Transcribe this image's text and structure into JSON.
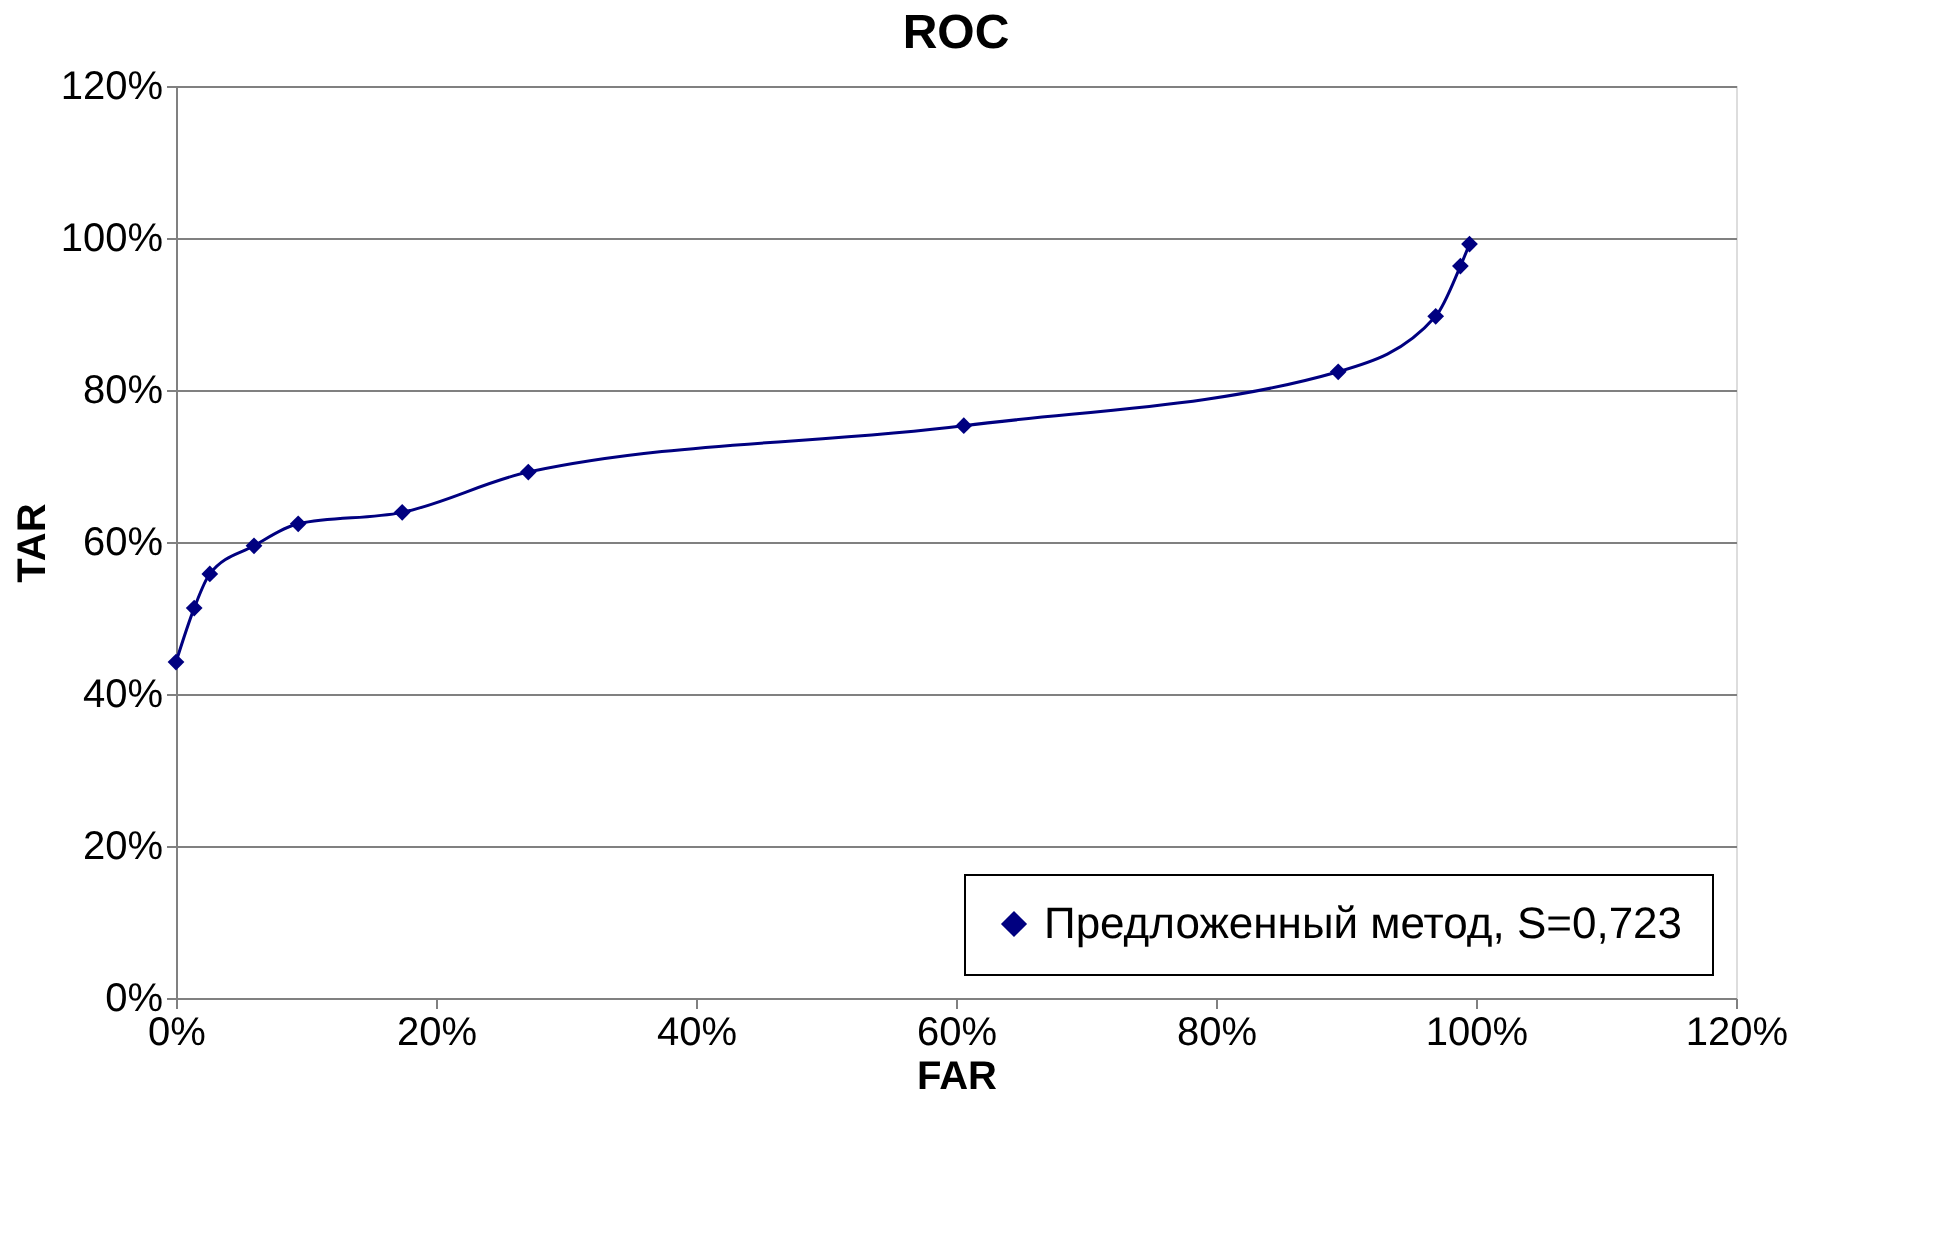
{
  "chart_data": {
    "type": "line",
    "title": "ROC",
    "xlabel": "FAR",
    "ylabel": "TAR",
    "x": [
      0,
      1.4,
      2.6,
      6.0,
      9.4,
      17.4,
      27.1,
      60.6,
      89.4,
      96.9,
      98.8,
      99.5
    ],
    "series": [
      {
        "name": "Предложенный метод, S=0,723",
        "color": "#000080",
        "values": [
          44.2,
          51.3,
          55.8,
          59.5,
          62.4,
          63.9,
          69.2,
          75.3,
          82.4,
          89.7,
          96.3,
          99.2
        ]
      }
    ],
    "xlim": [
      0,
      120
    ],
    "ylim": [
      0,
      120
    ],
    "xticks": [
      {
        "value": 0,
        "label": "0%"
      },
      {
        "value": 20,
        "label": "20%"
      },
      {
        "value": 40,
        "label": "40%"
      },
      {
        "value": 60,
        "label": "60%"
      },
      {
        "value": 80,
        "label": "80%"
      },
      {
        "value": 100,
        "label": "100%"
      },
      {
        "value": 120,
        "label": "120%"
      }
    ],
    "yticks": [
      {
        "value": 0,
        "label": "0%"
      },
      {
        "value": 20,
        "label": "20%"
      },
      {
        "value": 40,
        "label": "40%"
      },
      {
        "value": 60,
        "label": "60%"
      },
      {
        "value": 80,
        "label": "80%"
      },
      {
        "value": 100,
        "label": "100%"
      },
      {
        "value": 120,
        "label": "120%"
      }
    ],
    "grid": "y",
    "legend": "bottom right",
    "marker": "diamond",
    "line_style": "solid"
  }
}
